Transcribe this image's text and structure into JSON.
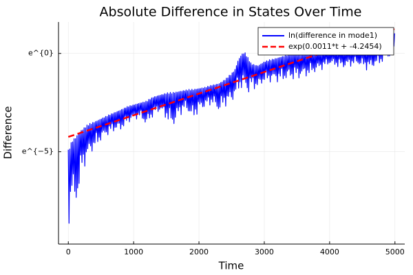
{
  "chart_data": {
    "type": "line",
    "title": "Absolute Difference in States Over Time",
    "xlabel": "Time",
    "ylabel": "Difference",
    "xlim": [
      -150,
      5150
    ],
    "ylim": [
      -9.7,
      1.6
    ],
    "x_ticks": [
      {
        "value": 0,
        "label": "0"
      },
      {
        "value": 1000,
        "label": "1000"
      },
      {
        "value": 2000,
        "label": "2000"
      },
      {
        "value": 3000,
        "label": "3000"
      },
      {
        "value": 4000,
        "label": "4000"
      },
      {
        "value": 5000,
        "label": "5000"
      }
    ],
    "y_ticks": [
      {
        "value": 0,
        "label": "e^{0}"
      },
      {
        "value": -5,
        "label": "e^{−5}"
      }
    ],
    "grid": true,
    "legend_position": "top-right",
    "series": [
      {
        "name": "ln(difference in mode1)",
        "style": "solid",
        "color": "#0000ff",
        "envelope": {
          "x": [
            0,
            30,
            60,
            100,
            150,
            200,
            300,
            400,
            500,
            600,
            700,
            800,
            900,
            1000,
            1100,
            1200,
            1300,
            1400,
            1500,
            1600,
            1700,
            1800,
            1900,
            2000,
            2100,
            2200,
            2300,
            2400,
            2500,
            2550,
            2600,
            2650,
            2700,
            2750,
            2800,
            2900,
            3000,
            3200,
            3400,
            3600,
            3800,
            4000,
            4200,
            4400,
            4600,
            4800,
            5000
          ],
          "high": [
            -4.9,
            -4.6,
            -4.4,
            -4.2,
            -4.0,
            -3.85,
            -3.6,
            -3.45,
            -3.3,
            -3.15,
            -3.0,
            -2.85,
            -2.7,
            -2.6,
            -2.5,
            -2.4,
            -2.2,
            -2.1,
            -2.0,
            -1.95,
            -1.9,
            -1.85,
            -1.8,
            -1.75,
            -1.7,
            -1.6,
            -1.5,
            -1.3,
            -1.0,
            -0.8,
            -0.3,
            0.0,
            0.1,
            -0.2,
            -0.5,
            -0.6,
            -0.4,
            -0.2,
            0.0,
            0.05,
            0.1,
            0.15,
            0.2,
            0.25,
            0.3,
            0.4,
            1.1
          ],
          "low": [
            -9.4,
            -8.0,
            -7.0,
            -8.6,
            -7.4,
            -6.2,
            -5.4,
            -4.9,
            -4.5,
            -4.2,
            -4.0,
            -4.0,
            -3.6,
            -3.4,
            -3.3,
            -3.8,
            -3.2,
            -3.0,
            -3.4,
            -3.9,
            -3.2,
            -2.9,
            -3.5,
            -3.0,
            -2.8,
            -2.6,
            -3.1,
            -2.7,
            -2.6,
            -2.3,
            -2.0,
            -1.9,
            -2.0,
            -2.2,
            -1.8,
            -1.9,
            -1.5,
            -1.5,
            -1.4,
            -1.3,
            -1.0,
            -0.6,
            -0.8,
            -0.6,
            -0.9,
            -0.5,
            -0.1
          ]
        }
      },
      {
        "name": "exp(0.0011*t + -4.2454)",
        "style": "dashed",
        "color": "#ff0000",
        "slope": 0.0011,
        "intercept": -4.2454,
        "x": [
          0,
          5000
        ]
      }
    ]
  }
}
